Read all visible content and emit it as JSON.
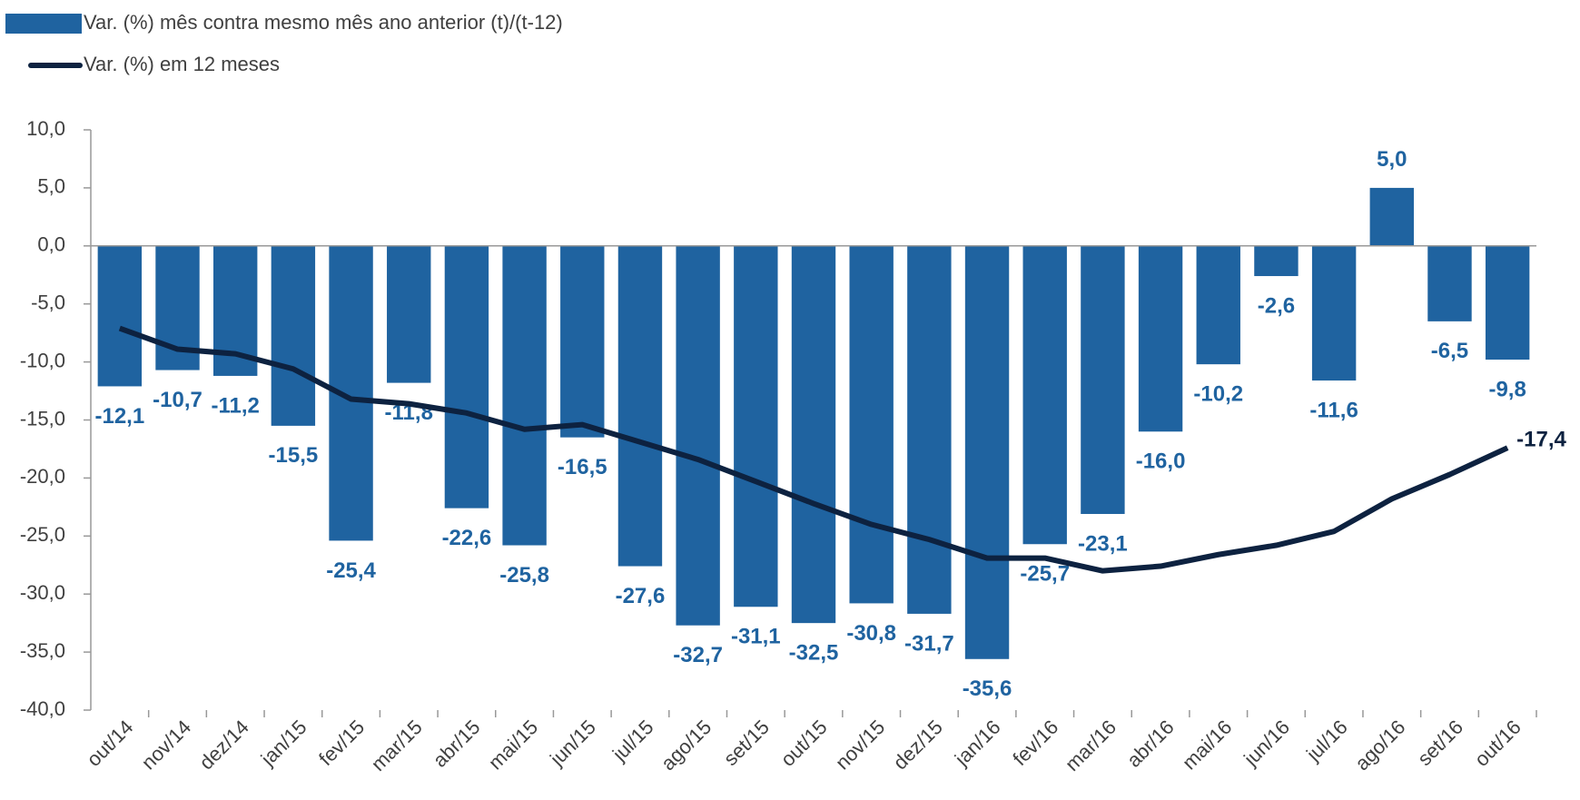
{
  "chart_data": {
    "type": "bar-line",
    "categories": [
      "out/14",
      "nov/14",
      "dez/14",
      "jan/15",
      "fev/15",
      "mar/15",
      "abr/15",
      "mai/15",
      "jun/15",
      "jul/15",
      "ago/15",
      "set/15",
      "out/15",
      "nov/15",
      "dez/15",
      "jan/16",
      "fev/16",
      "mar/16",
      "abr/16",
      "mai/16",
      "jun/16",
      "jul/16",
      "ago/16",
      "set/16",
      "out/16"
    ],
    "series": [
      {
        "name": "Var. (%) mês contra mesmo mês ano anterior (t)/(t-12)",
        "type": "bar",
        "color": "#1f63a0",
        "values": [
          -12.1,
          -10.7,
          -11.2,
          -15.5,
          -25.4,
          -11.8,
          -22.6,
          -25.8,
          -16.5,
          -27.6,
          -32.7,
          -31.1,
          -32.5,
          -30.8,
          -31.7,
          -35.6,
          -25.7,
          -23.1,
          -16.0,
          -10.2,
          -2.6,
          -11.6,
          5.0,
          -6.5,
          -9.8
        ],
        "value_labels": [
          "-12,1",
          "-10,7",
          "-11,2",
          "-15,5",
          "-25,4",
          "-11,8",
          "-22,6",
          "-25,8",
          "-16,5",
          "-27,6",
          "-32,7",
          "-31,1",
          "-32,5",
          "-30,8",
          "-31,7",
          "-35,6",
          "-25,7",
          "-23,1",
          "-16,0",
          "-10,2",
          "-2,6",
          "-11,6",
          "5,0",
          "-6,5",
          "-9,8"
        ]
      },
      {
        "name": "Var. (%) em 12 meses",
        "type": "line",
        "color": "#0d2240",
        "values": [
          -7.1,
          -8.9,
          -9.3,
          -10.6,
          -13.2,
          -13.6,
          -14.4,
          -15.8,
          -15.4,
          -16.9,
          -18.4,
          -20.3,
          -22.2,
          -24.0,
          -25.3,
          -26.9,
          -26.9,
          -28.0,
          -27.6,
          -26.6,
          -25.8,
          -24.6,
          -21.8,
          -19.7,
          -17.4
        ],
        "value_labels": [
          null,
          null,
          null,
          null,
          null,
          null,
          null,
          null,
          null,
          null,
          null,
          null,
          null,
          null,
          null,
          null,
          null,
          null,
          null,
          null,
          null,
          null,
          null,
          null,
          "-17,4"
        ]
      }
    ],
    "ylim": [
      -40,
      10
    ],
    "yticks": [
      {
        "value": 10,
        "label": "10,0"
      },
      {
        "value": 5,
        "label": "5,0"
      },
      {
        "value": 0,
        "label": "0,0"
      },
      {
        "value": -5,
        "label": "-5,0"
      },
      {
        "value": -10,
        "label": "-10,0"
      },
      {
        "value": -15,
        "label": "-15,0"
      },
      {
        "value": -20,
        "label": "-20,0"
      },
      {
        "value": -25,
        "label": "-25,0"
      },
      {
        "value": -30,
        "label": "-30,0"
      },
      {
        "value": -35,
        "label": "-35,0"
      },
      {
        "value": -40,
        "label": "-40,0"
      }
    ],
    "grid": false,
    "legend": "top-left"
  }
}
